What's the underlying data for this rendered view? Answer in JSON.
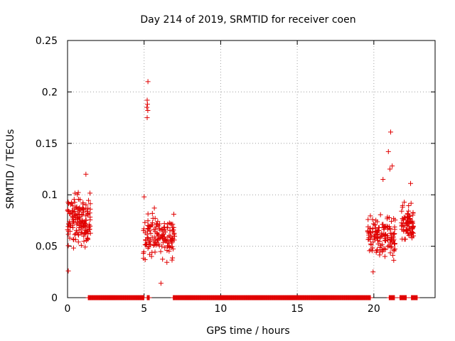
{
  "chart_data": {
    "type": "scatter",
    "title": "Day 214 of 2019, SRMTID for receiver coen",
    "xlabel": "GPS time / hours",
    "ylabel": "SRMTID / TECUs",
    "xlim": [
      0,
      24
    ],
    "ylim": [
      0,
      0.25
    ],
    "grid": true,
    "marker": "+",
    "color": "#e00000",
    "x_ticks": [
      "0",
      "5",
      "10",
      "15",
      "20"
    ],
    "x_tick_values": [
      0,
      5,
      10,
      15,
      20
    ],
    "y_ticks": [
      "0",
      "0.05",
      "0.1",
      "0.15",
      "0.2",
      "0.25"
    ],
    "y_tick_values": [
      0,
      0.05,
      0.1,
      0.15,
      0.2,
      0.25
    ],
    "clusters": [
      {
        "x_start": 0.0,
        "x_end": 1.5,
        "y_center": 0.075,
        "y_spread": 0.025,
        "count": 160
      },
      {
        "x_start": 4.95,
        "x_end": 7.0,
        "y_center": 0.06,
        "y_spread": 0.022,
        "count": 150
      },
      {
        "x_start": 19.6,
        "x_end": 21.4,
        "y_center": 0.06,
        "y_spread": 0.02,
        "count": 150
      },
      {
        "x_start": 21.8,
        "x_end": 22.6,
        "y_center": 0.07,
        "y_spread": 0.02,
        "count": 80
      }
    ],
    "outliers": [
      {
        "x": 5.25,
        "y": 0.21
      },
      {
        "x": 5.2,
        "y": 0.192
      },
      {
        "x": 5.22,
        "y": 0.188
      },
      {
        "x": 5.18,
        "y": 0.185
      },
      {
        "x": 5.24,
        "y": 0.182
      },
      {
        "x": 5.2,
        "y": 0.175
      },
      {
        "x": 5.0,
        "y": 0.098
      },
      {
        "x": 6.1,
        "y": 0.014
      },
      {
        "x": 0.05,
        "y": 0.026
      },
      {
        "x": 1.2,
        "y": 0.12
      },
      {
        "x": 21.1,
        "y": 0.161
      },
      {
        "x": 20.95,
        "y": 0.142
      },
      {
        "x": 21.2,
        "y": 0.128
      },
      {
        "x": 21.05,
        "y": 0.125
      },
      {
        "x": 20.6,
        "y": 0.115
      },
      {
        "x": 22.4,
        "y": 0.111
      },
      {
        "x": 19.95,
        "y": 0.025
      }
    ],
    "zero_segments": [
      [
        1.35,
        5.0
      ],
      [
        5.2,
        5.35
      ],
      [
        6.9,
        19.8
      ],
      [
        21.0,
        21.35
      ],
      [
        21.7,
        22.15
      ],
      [
        22.45,
        22.85
      ]
    ]
  }
}
